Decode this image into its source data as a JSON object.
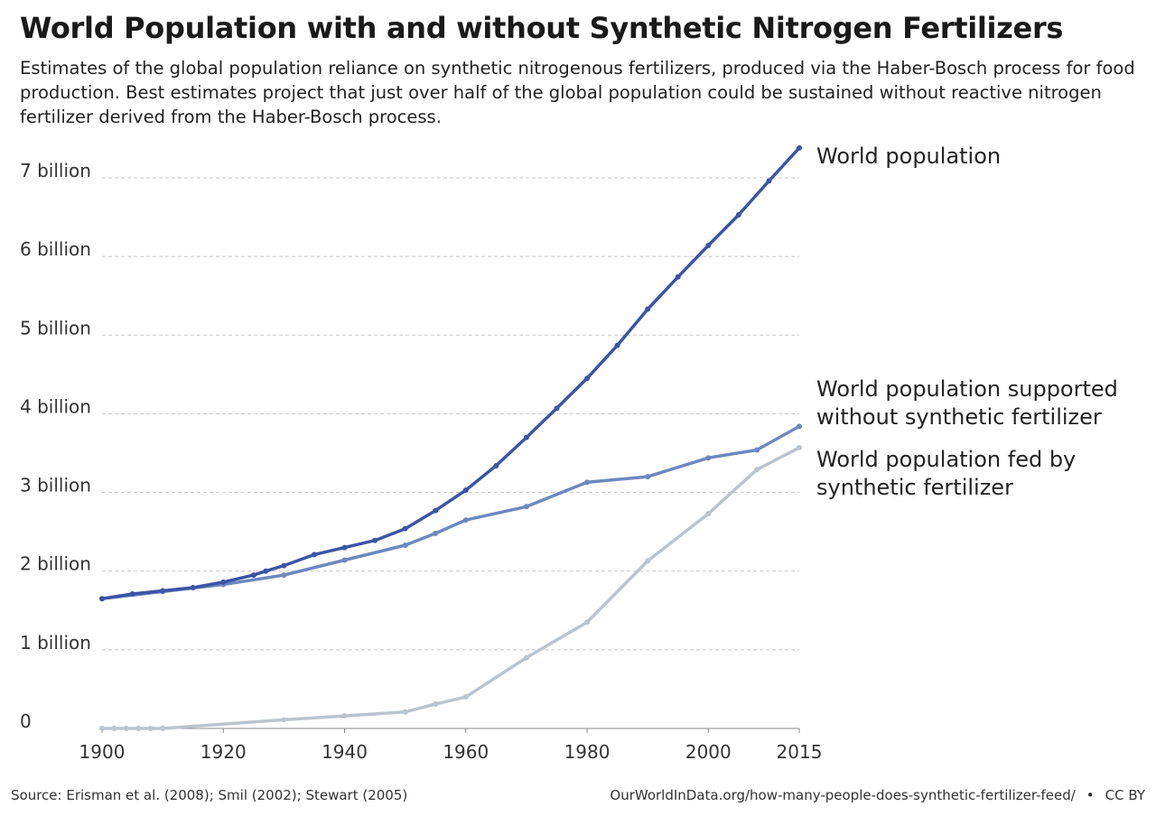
{
  "title": "World Population with and without Synthetic Nitrogen Fertilizers",
  "subtitle": "Estimates of the global population reliance on synthetic nitrogenous fertilizers, produced via the Haber-Bosch process for food production. Best estimates project that just over half of the global population could be sustained without reactive nitrogen fertilizer derived from the Haber-Bosch process.",
  "footer": {
    "source": "Source: Erisman et al. (2008); Smil (2002); Stewart (2005)",
    "url": "OurWorldInData.org/how-many-people-does-synthetic-fertilizer-feed/",
    "separator": "•",
    "license": "CC BY"
  },
  "chart_data": {
    "type": "line",
    "xlim": [
      1900,
      2015
    ],
    "ylim": [
      0,
      7000000000
    ],
    "x_ticks": [
      1900,
      1920,
      1940,
      1960,
      1980,
      2000,
      2015
    ],
    "y_ticks": [
      {
        "value": 0,
        "label": "0"
      },
      {
        "value": 1000000000,
        "label": "1 billion"
      },
      {
        "value": 2000000000,
        "label": "2 billion"
      },
      {
        "value": 3000000000,
        "label": "3 billion"
      },
      {
        "value": 4000000000,
        "label": "4 billion"
      },
      {
        "value": 5000000000,
        "label": "5 billion"
      },
      {
        "value": 6000000000,
        "label": "6 billion"
      },
      {
        "value": 7000000000,
        "label": "7 billion"
      }
    ],
    "grid": "horizontal dashed",
    "series": [
      {
        "name": "World population",
        "color": "#3b54a6",
        "x": [
          1900,
          1905,
          1910,
          1915,
          1920,
          1925,
          1927,
          1930,
          1935,
          1940,
          1945,
          1950,
          1955,
          1960,
          1965,
          1970,
          1975,
          1980,
          1985,
          1990,
          1995,
          2000,
          2005,
          2010,
          2015
        ],
        "y": [
          1650000000,
          1710000000,
          1750000000,
          1790000000,
          1860000000,
          1950000000,
          2000000000,
          2070000000,
          2210000000,
          2300000000,
          2390000000,
          2540000000,
          2770000000,
          3030000000,
          3340000000,
          3700000000,
          4070000000,
          4450000000,
          4870000000,
          5330000000,
          5740000000,
          6140000000,
          6530000000,
          6960000000,
          7380000000
        ]
      },
      {
        "name": "World population supported without synthetic fertilizer",
        "color": "#6d88bf",
        "x": [
          1900,
          1910,
          1920,
          1930,
          1940,
          1950,
          1955,
          1960,
          1970,
          1980,
          1990,
          2000,
          2008,
          2015
        ],
        "y": [
          1650000000,
          1740000000,
          1830000000,
          1950000000,
          2140000000,
          2330000000,
          2480000000,
          2650000000,
          2820000000,
          3130000000,
          3200000000,
          3440000000,
          3540000000,
          3840000000
        ]
      },
      {
        "name": "World population fed by synthetic fertilizer",
        "color": "#bac4cf",
        "x": [
          1900,
          1902,
          1904,
          1906,
          1908,
          1910,
          1930,
          1940,
          1950,
          1955,
          1960,
          1970,
          1980,
          1990,
          2000,
          2008,
          2015
        ],
        "y": [
          0,
          0,
          0,
          0,
          0,
          0,
          110000000,
          160000000,
          210000000,
          310000000,
          400000000,
          900000000,
          1350000000,
          2130000000,
          2730000000,
          3290000000,
          3570000000
        ]
      }
    ],
    "series_labels": [
      {
        "lines": [
          "World population"
        ]
      },
      {
        "lines": [
          "World population supported",
          "without synthetic fertilizer"
        ]
      },
      {
        "lines": [
          "World population fed by",
          "synthetic fertilizer"
        ]
      }
    ]
  }
}
